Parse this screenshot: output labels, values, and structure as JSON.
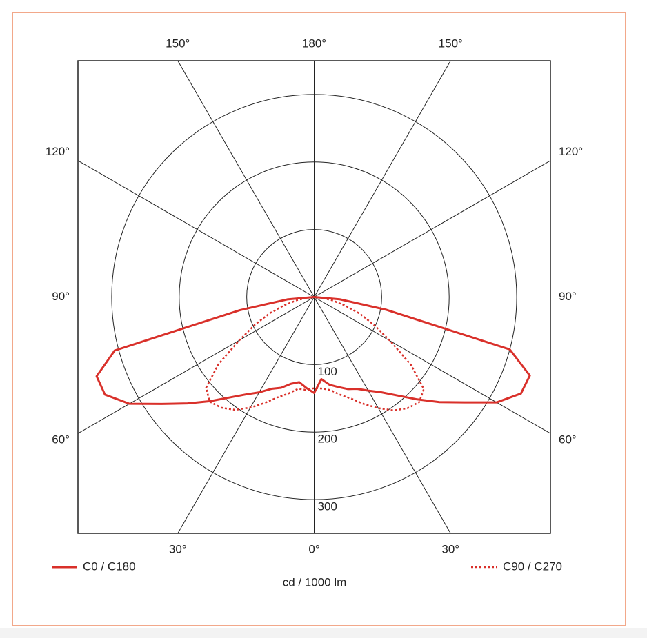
{
  "chart_data": {
    "type": "polar",
    "xlabel": "cd / 1000 lm",
    "angles": [
      -90,
      -85,
      -80,
      -75,
      -70,
      -65,
      -60,
      -55,
      -50,
      -45,
      -40,
      -35,
      -30,
      -25,
      -20,
      -15,
      -10,
      -5,
      0,
      5,
      10,
      15,
      20,
      25,
      30,
      35,
      40,
      45,
      50,
      55,
      60,
      65,
      70,
      75,
      80,
      85,
      90
    ],
    "series": [
      {
        "name": "C0 / C180",
        "color": "#d9302a",
        "dash": false,
        "values": [
          0,
          40,
          112,
          306,
          343,
          342,
          316,
          276,
          245,
          218,
          194,
          176,
          163,
          150,
          143,
          133,
          128,
          135,
          142,
          122,
          132,
          138,
          145,
          150,
          160,
          172,
          190,
          214,
          242,
          272,
          312,
          338,
          340,
          300,
          108,
          38,
          0
        ]
      },
      {
        "name": "C90 / C270",
        "color": "#d9302a",
        "dash": true,
        "values": [
          0,
          10,
          25,
          45,
          70,
          97,
          128,
          173,
          209,
          219,
          214,
          204,
          189,
          173,
          158,
          148,
          138,
          138,
          135,
          136,
          140,
          150,
          160,
          175,
          190,
          205,
          215,
          220,
          212,
          175,
          130,
          98,
          72,
          46,
          26,
          10,
          0
        ]
      }
    ],
    "rlim": [
      0,
      350
    ],
    "rticks": [
      100,
      200,
      300
    ],
    "angle_ticks": [
      {
        "value": -150,
        "label": "150°"
      },
      {
        "value": 180,
        "label": "180°"
      },
      {
        "value": 150,
        "label": "150°"
      },
      {
        "value": -120,
        "label": "120°"
      },
      {
        "value": 120,
        "label": "120°"
      },
      {
        "value": -90,
        "label": "90°"
      },
      {
        "value": 90,
        "label": "90°"
      },
      {
        "value": -60,
        "label": "60°"
      },
      {
        "value": 60,
        "label": "60°"
      },
      {
        "value": -30,
        "label": "30°"
      },
      {
        "value": 0,
        "label": "0°"
      },
      {
        "value": 30,
        "label": "30°"
      }
    ],
    "legend": "bottom"
  }
}
